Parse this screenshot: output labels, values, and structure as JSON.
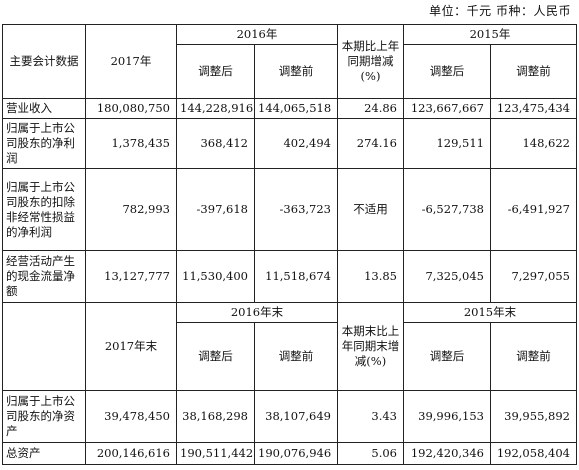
{
  "unit_line": "单位：千元  币种：人民币",
  "header1": {
    "item": "主要会计数据",
    "y2017": "2017年",
    "y2016": "2016年",
    "change": "本期比上年同期增减(%)",
    "y2015": "2015年",
    "adjusted_after": "调整后",
    "adjusted_before": "调整前"
  },
  "rows1": [
    {
      "label": "营业收入",
      "v2017": "180,080,750",
      "v2016a": "144,228,916",
      "v2016b": "144,065,518",
      "chg": "24.86",
      "v2015a": "123,667,667",
      "v2015b": "123,475,434"
    },
    {
      "label": "归属于上市公司股东的净利润",
      "v2017": "1,378,435",
      "v2016a": "368,412",
      "v2016b": "402,494",
      "chg": "274.16",
      "v2015a": "129,511",
      "v2015b": "148,622"
    },
    {
      "label": "归属于上市公司股东的扣除非经常性损益的净利润",
      "v2017": "782,993",
      "v2016a": "-397,618",
      "v2016b": "-363,723",
      "chg": "不适用",
      "v2015a": "-6,527,738",
      "v2015b": "-6,491,927"
    },
    {
      "label": "经营活动产生的现金流量净额",
      "v2017": "13,127,777",
      "v2016a": "11,530,400",
      "v2016b": "11,518,674",
      "chg": "13.85",
      "v2015a": "7,325,045",
      "v2015b": "7,297,055"
    }
  ],
  "header2": {
    "y2017": "2017年末",
    "y2016": "2016年末",
    "change": "本期末比上年同期末增减(%)",
    "y2015": "2015年末",
    "adjusted_after": "调整后",
    "adjusted_before": "调整前"
  },
  "rows2": [
    {
      "label": "归属于上市公司股东的净资产",
      "v2017": "39,478,450",
      "v2016a": "38,168,298",
      "v2016b": "38,107,649",
      "chg": "3.43",
      "v2015a": "39,996,153",
      "v2015b": "39,955,892"
    },
    {
      "label": "总资产",
      "v2017": "200,146,616",
      "v2016a": "190,511,442",
      "v2016b": "190,076,946",
      "chg": "5.06",
      "v2015a": "192,420,346",
      "v2015b": "192,058,404"
    }
  ]
}
